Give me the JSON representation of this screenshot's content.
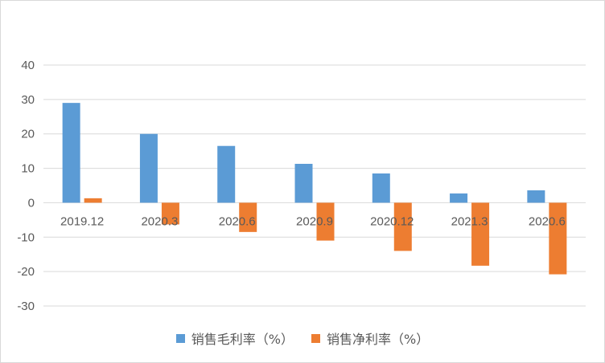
{
  "chart_data": {
    "type": "bar",
    "categories": [
      "2019.12",
      "2020.3",
      "2020.6",
      "2020.9",
      "2020.12",
      "2021.3",
      "2020.6"
    ],
    "series": [
      {
        "name": "销售毛利率（%）",
        "color": "#5b9bd5",
        "values": [
          29.0,
          20.0,
          16.5,
          11.3,
          8.5,
          2.7,
          3.6
        ]
      },
      {
        "name": "销售净利率（%）",
        "color": "#ed7d31",
        "values": [
          1.3,
          -6.3,
          -8.5,
          -11.0,
          -14.0,
          -18.3,
          -20.8
        ]
      }
    ],
    "yticks": [
      40,
      30,
      20,
      10,
      0,
      -10,
      -20,
      -30
    ],
    "ylim": [
      -30,
      40
    ],
    "grid": true,
    "legend_position": "bottom",
    "title": "",
    "xlabel": "",
    "ylabel": ""
  }
}
